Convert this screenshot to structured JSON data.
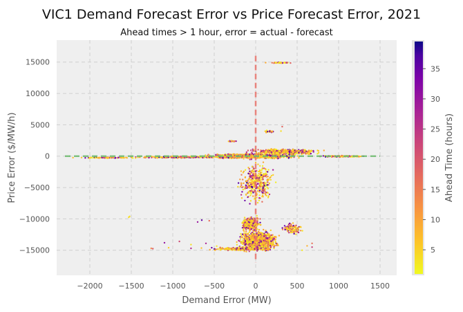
{
  "chart_data": {
    "type": "scatter",
    "title": "VIC1 Demand Forecast Error vs Price Forecast Error, 2021",
    "subtitle": "Ahead times > 1 hour, error = actual - forecast",
    "xlabel": "Demand Error (MW)",
    "ylabel": "Price Error ($/MW/h)",
    "xlim": [
      -2400,
      1700
    ],
    "ylim": [
      -19000,
      18500
    ],
    "xticks": [
      -2000,
      -1500,
      -1000,
      -500,
      0,
      500,
      1000,
      1500
    ],
    "yticks": [
      -15000,
      -10000,
      -5000,
      0,
      5000,
      10000,
      15000
    ],
    "grid": true,
    "colorbar": {
      "label": "Ahead Time (hours)",
      "range": [
        1,
        39.5
      ],
      "ticks": [
        5,
        10,
        15,
        20,
        25,
        30,
        35
      ],
      "colormap": "plasma_r"
    },
    "reference_lines": [
      {
        "orientation": "vertical",
        "x": 0,
        "y_range": [
          -17000,
          16000
        ],
        "color": "#e8736b"
      },
      {
        "orientation": "horizontal",
        "y": 0,
        "x_range": [
          -2300,
          1500
        ],
        "color": "#6dbb6d"
      }
    ],
    "clusters": [
      {
        "x_center": -50,
        "x_spread": 420,
        "y_center": 0,
        "y_spread": 300,
        "n": 1200
      },
      {
        "x_center": 350,
        "x_spread": 350,
        "y_center": 700,
        "y_spread": 350,
        "n": 500
      },
      {
        "x_center": -900,
        "x_spread": 500,
        "y_center": -150,
        "y_spread": 120,
        "n": 250
      },
      {
        "x_center": 1050,
        "x_spread": 250,
        "y_center": -20,
        "y_spread": 100,
        "n": 120
      },
      {
        "x_center": -1800,
        "x_spread": 300,
        "y_center": -250,
        "y_spread": 80,
        "n": 80
      },
      {
        "x_center": 30,
        "x_spread": 190,
        "y_center": -13500,
        "y_spread": 1300,
        "n": 1100
      },
      {
        "x_center": -60,
        "x_spread": 90,
        "y_center": -10800,
        "y_spread": 900,
        "n": 350
      },
      {
        "x_center": 450,
        "x_spread": 100,
        "y_center": -11500,
        "y_spread": 800,
        "n": 120
      },
      {
        "x_center": 10,
        "x_spread": 170,
        "y_center": -4200,
        "y_spread": 2600,
        "n": 400
      },
      {
        "x_center": 300,
        "x_spread": 100,
        "y_center": 14900,
        "y_spread": 80,
        "n": 40
      },
      {
        "x_center": 170,
        "x_spread": 60,
        "y_center": 3900,
        "y_spread": 150,
        "n": 30
      },
      {
        "x_center": -280,
        "x_spread": 40,
        "y_center": 2400,
        "y_spread": 80,
        "n": 20
      },
      {
        "x_center": -200,
        "x_spread": 300,
        "y_center": -14800,
        "y_spread": 200,
        "n": 200
      }
    ],
    "outliers": [
      [
        -1520,
        -9600
      ],
      [
        -1530,
        -9750
      ],
      [
        -1260,
        -14700
      ],
      [
        -1240,
        -14750
      ],
      [
        -1050,
        -14600
      ],
      [
        -1100,
        -13800
      ],
      [
        -920,
        -13600
      ],
      [
        -650,
        -10200
      ],
      [
        -700,
        -10500
      ],
      [
        -560,
        -10300
      ],
      [
        -600,
        -13900
      ],
      [
        -780,
        -14100
      ],
      [
        -530,
        -14600
      ],
      [
        -470,
        -14350
      ],
      [
        320,
        4700
      ],
      [
        305,
        4000
      ],
      [
        120,
        14900
      ],
      [
        420,
        14850
      ],
      [
        620,
        -14300
      ],
      [
        680,
        -13900
      ],
      [
        560,
        -15000
      ],
      [
        -780,
        -14700
      ],
      [
        -320,
        -14800
      ],
      [
        680,
        -14500
      ]
    ]
  }
}
